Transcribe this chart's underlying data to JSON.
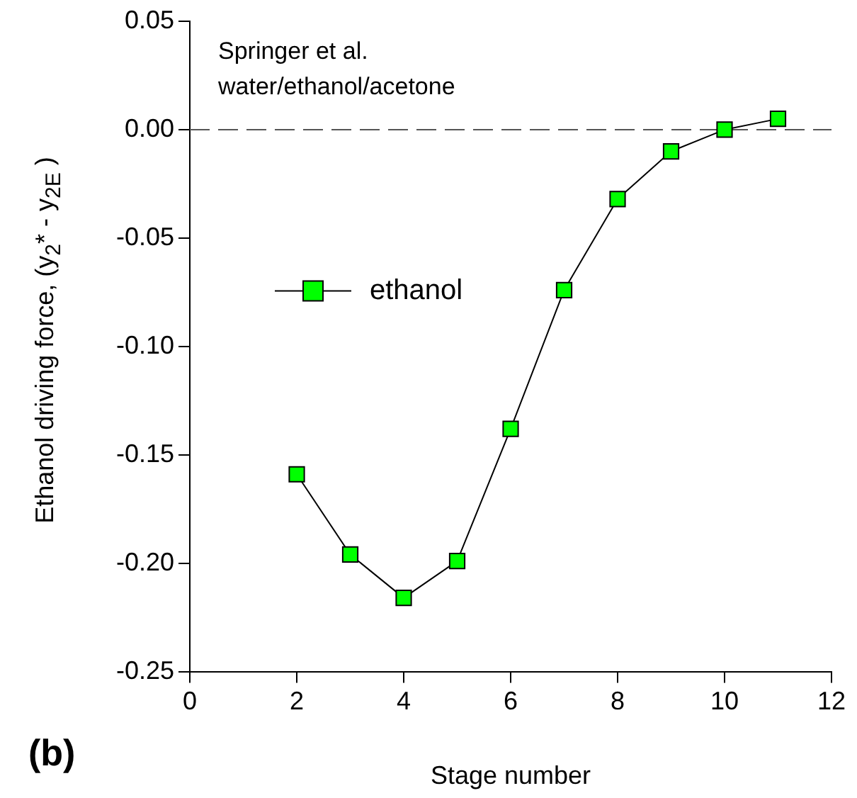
{
  "chart_data": {
    "type": "line",
    "xlabel": "Stage number",
    "ylabel": "Ethanol driving force, (y$_{2}$* - y$_{2E}$ )",
    "x": [
      2,
      3,
      4,
      5,
      6,
      7,
      8,
      9,
      10,
      11
    ],
    "series": [
      {
        "name": "ethanol",
        "color": "#00ff00",
        "values": [
          -0.159,
          -0.196,
          -0.216,
          -0.199,
          -0.138,
          -0.074,
          -0.032,
          -0.01,
          0.0,
          0.005
        ]
      }
    ],
    "xlim": [
      0,
      12
    ],
    "xticks": [
      0,
      2,
      4,
      6,
      8,
      10,
      12
    ],
    "ylim": [
      -0.25,
      0.05
    ],
    "yticks": [
      {
        "value": -0.25,
        "label": "-0.25"
      },
      {
        "value": -0.2,
        "label": "-0.20"
      },
      -0.15,
      {
        "value": -0.1,
        "label": "-0.10"
      },
      -0.05,
      {
        "value": 0,
        "label": "0.00"
      },
      0.05
    ],
    "ref_lines": [
      {
        "axis": "y",
        "value": 0,
        "line_style": "dashed",
        "color": "#555555"
      }
    ],
    "annotations": [
      "Springer et al.",
      "water/ethanol/acetone",
      "(b)"
    ],
    "legend": "left",
    "marker": "square",
    "line_style": "solid",
    "grid": false
  }
}
